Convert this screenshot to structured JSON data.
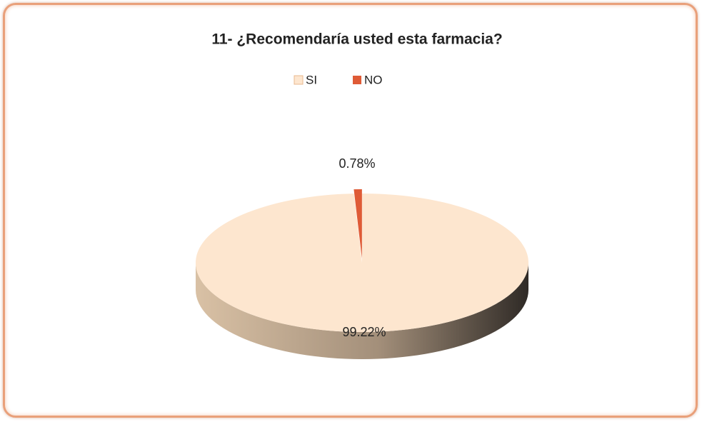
{
  "chart_data": {
    "type": "pie",
    "title": "11- ¿Recomendaría usted esta farmacia?",
    "categories": [
      "SI",
      "NO"
    ],
    "values": [
      99.22,
      0.78
    ],
    "value_labels": [
      "99.22%",
      "0.78%"
    ],
    "colors": [
      "#fde6cf",
      "#df5b36"
    ],
    "legend": "top"
  }
}
